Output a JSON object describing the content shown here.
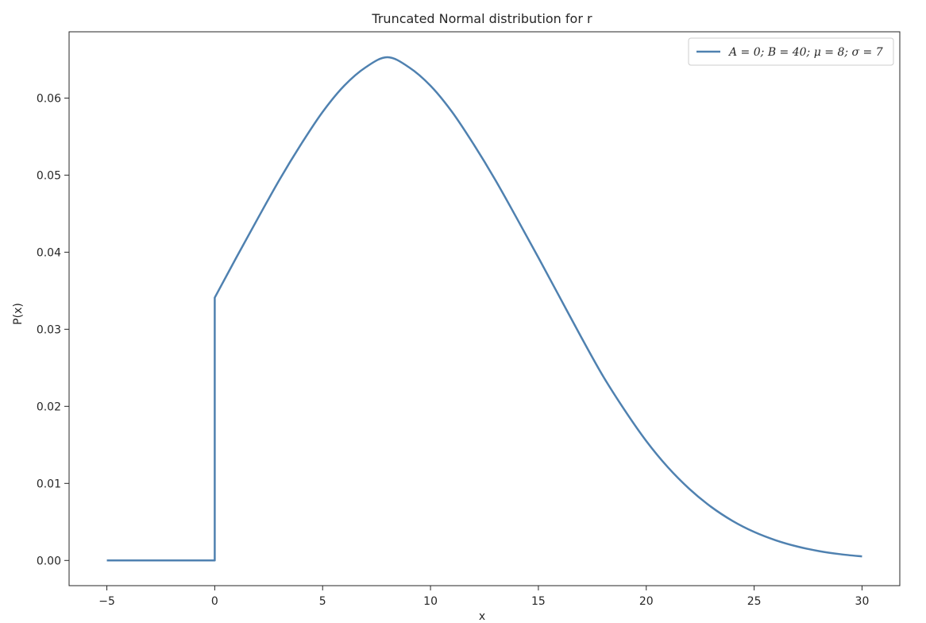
{
  "chart_data": {
    "type": "line",
    "title": "Truncated Normal distribution for r",
    "xlabel": "x",
    "ylabel": "P(x)",
    "xlim": [
      -6.75,
      31.75
    ],
    "ylim": [
      -0.00327,
      0.0686
    ],
    "xticks": [
      -5,
      0,
      5,
      10,
      15,
      20,
      25,
      30
    ],
    "xtick_labels": [
      "−5",
      "0",
      "5",
      "10",
      "15",
      "20",
      "25",
      "30"
    ],
    "yticks": [
      0.0,
      0.01,
      0.02,
      0.03,
      0.04,
      0.05,
      0.06
    ],
    "ytick_labels": [
      "0.00",
      "0.01",
      "0.02",
      "0.03",
      "0.04",
      "0.05",
      "0.06"
    ],
    "grid": false,
    "legend_position": "top-right",
    "series": [
      {
        "name": "A = 0; B = 40; μ = 8; σ = 7",
        "color": "#4f81b0",
        "x": [
          -5,
          -2.5,
          0,
          0,
          1,
          2,
          3,
          4,
          5,
          6,
          7,
          8,
          9,
          10,
          11,
          12,
          13,
          14,
          15,
          16,
          17,
          18,
          19,
          20,
          21,
          22,
          23,
          24,
          25,
          26,
          27,
          28,
          29,
          30
        ],
        "y": [
          0.0,
          0.0,
          0.0,
          0.0341,
          0.0393,
          0.0444,
          0.0494,
          0.054,
          0.0582,
          0.0616,
          0.064,
          0.0653,
          0.064,
          0.0616,
          0.0582,
          0.054,
          0.0494,
          0.0444,
          0.0393,
          0.0341,
          0.0289,
          0.0239,
          0.0195,
          0.0155,
          0.0121,
          0.00928,
          0.00697,
          0.00513,
          0.0037,
          0.00262,
          0.00181,
          0.00122,
          0.00081,
          0.00052
        ]
      }
    ]
  }
}
